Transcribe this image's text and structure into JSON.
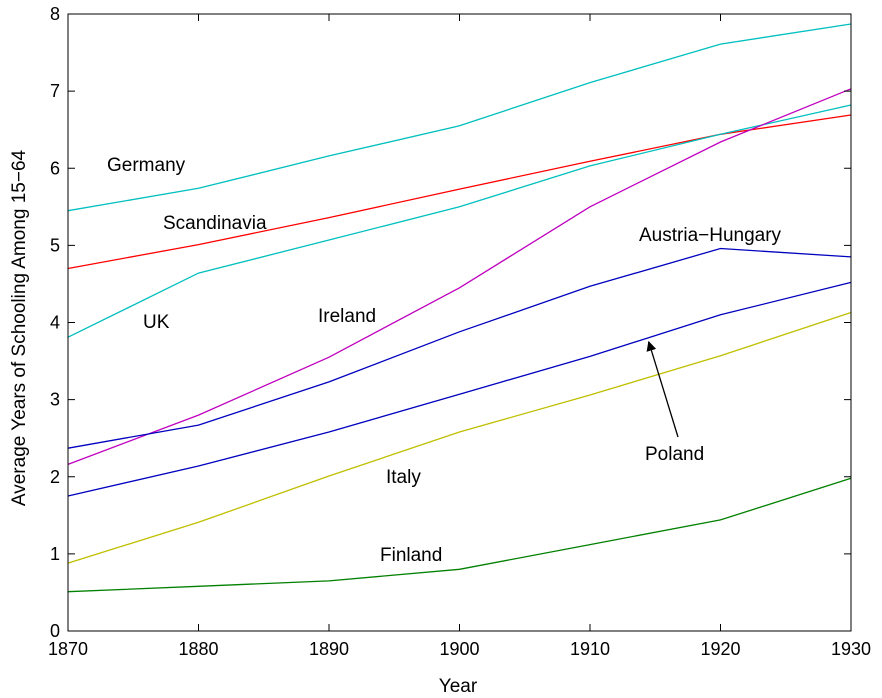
{
  "chart_data": {
    "type": "line",
    "xlabel": "Year",
    "ylabel": "Average Years of Schooling Among 15−64",
    "xlim": [
      1870,
      1930
    ],
    "ylim": [
      0,
      8
    ],
    "grid": false,
    "x": [
      1870,
      1880,
      1890,
      1900,
      1910,
      1920,
      1930
    ],
    "x_ticks": [
      "1870",
      "1880",
      "1890",
      "1900",
      "1910",
      "1920",
      "1930"
    ],
    "y_ticks": [
      "0",
      "1",
      "2",
      "3",
      "4",
      "5",
      "6",
      "7",
      "8"
    ],
    "series": [
      {
        "name": "Germany",
        "color": "#00bfbf",
        "values": [
          5.45,
          5.74,
          6.16,
          6.55,
          7.11,
          7.61,
          7.87
        ]
      },
      {
        "name": "Scandinavia",
        "color": "#ff0000",
        "values": [
          4.7,
          5.01,
          5.36,
          5.73,
          6.09,
          6.44,
          6.69
        ]
      },
      {
        "name": "UK",
        "color": "#00bfbf",
        "values": [
          3.81,
          4.64,
          5.07,
          5.5,
          6.03,
          6.44,
          6.82
        ]
      },
      {
        "name": "Ireland",
        "color": "#bf00bf",
        "values": [
          2.16,
          2.8,
          3.55,
          4.45,
          5.5,
          6.34,
          7.03
        ]
      },
      {
        "name": "Austria−Hungary",
        "color": "#0000bf",
        "values": [
          2.37,
          2.67,
          3.23,
          3.88,
          4.47,
          4.96,
          4.85
        ]
      },
      {
        "name": "Poland",
        "color": "#0000bf",
        "values": [
          1.75,
          2.14,
          2.58,
          3.07,
          3.56,
          4.1,
          4.52
        ]
      },
      {
        "name": "Italy",
        "color": "#bfbf00",
        "values": [
          0.88,
          1.41,
          2.01,
          2.58,
          3.06,
          3.57,
          4.13
        ]
      },
      {
        "name": "Finland",
        "color": "#008000",
        "values": [
          0.51,
          0.58,
          0.65,
          0.8,
          1.12,
          1.44,
          1.98
        ]
      }
    ],
    "annotations": [
      {
        "text": "Germany",
        "series": "Germany"
      },
      {
        "text": "Scandinavia",
        "series": "Scandinavia"
      },
      {
        "text": "UK",
        "series": "UK"
      },
      {
        "text": "Ireland",
        "series": "Ireland"
      },
      {
        "text": "Austria−Hungary",
        "series": "Austria−Hungary"
      },
      {
        "text": "Poland",
        "series": "Poland",
        "arrow_to": [
          1914.5,
          3.75
        ]
      },
      {
        "text": "Italy",
        "series": "Italy"
      },
      {
        "text": "Finland",
        "series": "Finland"
      }
    ]
  }
}
